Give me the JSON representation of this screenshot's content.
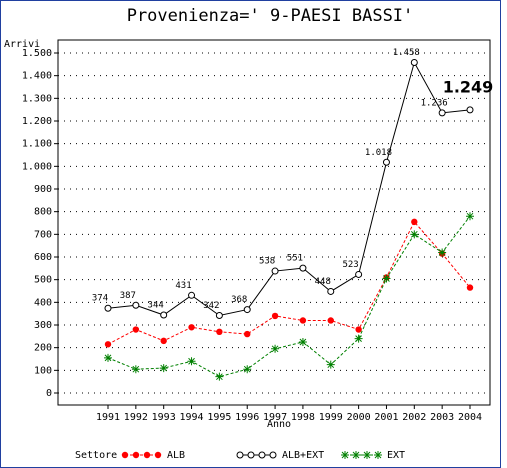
{
  "chart_data": {
    "type": "line",
    "title": "Provenienza=' 9-PAESI BASSI'",
    "y_label": "Arrivi",
    "x_label": "Anno",
    "legend_title": "Settore",
    "categories": [
      "1991",
      "1992",
      "1993",
      "1994",
      "1995",
      "1996",
      "1997",
      "1998",
      "1999",
      "2000",
      "2001",
      "2002",
      "2003",
      "2004"
    ],
    "series": [
      {
        "name": "ALB",
        "color": "#ff0000",
        "marker": "dot",
        "values": [
          215,
          280,
          230,
          290,
          270,
          260,
          340,
          320,
          320,
          280,
          510,
          755,
          615,
          465
        ]
      },
      {
        "name": "ALB+EXT",
        "color": "#000000",
        "marker": "circle",
        "values": [
          374,
          387,
          344,
          431,
          342,
          368,
          538,
          551,
          448,
          523,
          1018,
          1458,
          1236,
          1249
        ],
        "value_labels": [
          "374",
          "387",
          "344",
          "431",
          "342",
          "368",
          "538",
          "551",
          "448",
          "523",
          "1.018",
          "1.458",
          "1.236",
          "1.249"
        ]
      },
      {
        "name": "EXT",
        "color": "#008000",
        "marker": "star",
        "values": [
          155,
          105,
          110,
          140,
          72,
          105,
          195,
          225,
          125,
          240,
          505,
          700,
          620,
          780
        ]
      }
    ],
    "ylim": [
      0,
      1500
    ],
    "yticks": [
      0,
      100,
      200,
      300,
      400,
      500,
      600,
      700,
      800,
      900,
      {
        "value": 1000,
        "label": "1.000"
      },
      {
        "value": 1100,
        "label": "1.100"
      },
      {
        "value": 1200,
        "label": "1.200"
      },
      {
        "value": 1300,
        "label": "1.300"
      },
      {
        "value": 1400,
        "label": "1.400"
      },
      {
        "value": 1500,
        "label": "1.500"
      }
    ],
    "grid": true
  }
}
